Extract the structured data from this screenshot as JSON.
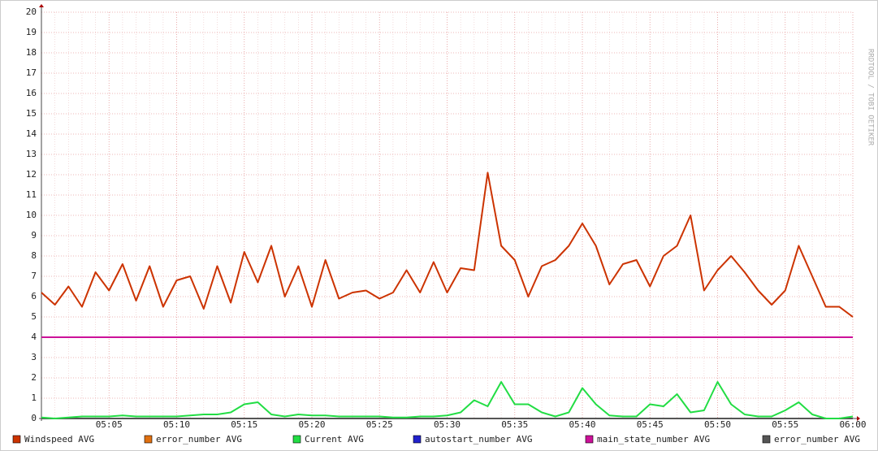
{
  "chart_data": {
    "type": "line",
    "watermark": "RRDTOOL / TOBI OETIKER",
    "x": [
      "05:00",
      "05:01",
      "05:02",
      "05:03",
      "05:04",
      "05:05",
      "05:06",
      "05:07",
      "05:08",
      "05:09",
      "05:10",
      "05:11",
      "05:12",
      "05:13",
      "05:14",
      "05:15",
      "05:16",
      "05:17",
      "05:18",
      "05:19",
      "05:20",
      "05:21",
      "05:22",
      "05:23",
      "05:24",
      "05:25",
      "05:26",
      "05:27",
      "05:28",
      "05:29",
      "05:30",
      "05:31",
      "05:32",
      "05:33",
      "05:34",
      "05:35",
      "05:36",
      "05:37",
      "05:38",
      "05:39",
      "05:40",
      "05:41",
      "05:42",
      "05:43",
      "05:44",
      "05:45",
      "05:46",
      "05:47",
      "05:48",
      "05:49",
      "05:50",
      "05:51",
      "05:52",
      "05:53",
      "05:54",
      "05:55",
      "05:56",
      "05:57",
      "05:58",
      "05:59",
      "06:00"
    ],
    "series": [
      {
        "name": "Windspeed AVG",
        "color": "#cc3300",
        "values": [
          6.2,
          5.6,
          6.5,
          5.5,
          7.2,
          6.3,
          7.6,
          5.8,
          7.5,
          5.5,
          6.8,
          7.0,
          5.4,
          7.5,
          5.7,
          8.2,
          6.7,
          8.5,
          6.0,
          7.5,
          5.5,
          7.8,
          5.9,
          6.2,
          6.3,
          5.9,
          6.2,
          7.3,
          6.2,
          7.7,
          6.2,
          7.4,
          7.3,
          12.1,
          8.5,
          7.8,
          6.0,
          7.5,
          7.8,
          8.5,
          9.6,
          8.5,
          6.6,
          7.6,
          7.8,
          6.5,
          8.0,
          8.5,
          10.0,
          6.3,
          7.3,
          8.0,
          7.2,
          6.3,
          5.6,
          6.3,
          8.5,
          7.0,
          5.5,
          5.5,
          5.0
        ]
      },
      {
        "name": "error_number AVG",
        "color": "#e07010",
        "values": [
          0,
          0,
          0,
          0,
          0,
          0,
          0,
          0,
          0,
          0,
          0,
          0,
          0,
          0,
          0,
          0,
          0,
          0,
          0,
          0,
          0,
          0,
          0,
          0,
          0,
          0,
          0,
          0,
          0,
          0,
          0,
          0,
          0,
          0,
          0,
          0,
          0,
          0,
          0,
          0,
          0,
          0,
          0,
          0,
          0,
          0,
          0,
          0,
          0,
          0,
          0,
          0,
          0,
          0,
          0,
          0,
          0,
          0,
          0,
          0,
          0
        ]
      },
      {
        "name": "Current AVG",
        "color": "#22dd44",
        "values": [
          0.05,
          0.0,
          0.05,
          0.1,
          0.1,
          0.1,
          0.15,
          0.1,
          0.1,
          0.1,
          0.1,
          0.15,
          0.2,
          0.2,
          0.3,
          0.7,
          0.8,
          0.2,
          0.1,
          0.2,
          0.15,
          0.15,
          0.1,
          0.1,
          0.1,
          0.1,
          0.05,
          0.05,
          0.1,
          0.1,
          0.15,
          0.3,
          0.9,
          0.6,
          1.8,
          0.7,
          0.7,
          0.3,
          0.1,
          0.3,
          1.5,
          0.7,
          0.15,
          0.1,
          0.1,
          0.7,
          0.6,
          1.2,
          0.3,
          0.4,
          1.8,
          0.7,
          0.2,
          0.1,
          0.1,
          0.4,
          0.8,
          0.2,
          0.0,
          0.0,
          0.1
        ]
      },
      {
        "name": "autostart_number AVG",
        "color": "#2222cc",
        "values": [
          0,
          0,
          0,
          0,
          0,
          0,
          0,
          0,
          0,
          0,
          0,
          0,
          0,
          0,
          0,
          0,
          0,
          0,
          0,
          0,
          0,
          0,
          0,
          0,
          0,
          0,
          0,
          0,
          0,
          0,
          0,
          0,
          0,
          0,
          0,
          0,
          0,
          0,
          0,
          0,
          0,
          0,
          0,
          0,
          0,
          0,
          0,
          0,
          0,
          0,
          0,
          0,
          0,
          0,
          0,
          0,
          0,
          0,
          0,
          0,
          0
        ]
      },
      {
        "name": "main_state_number AVG",
        "color": "#cc1199",
        "values": [
          4,
          4,
          4,
          4,
          4,
          4,
          4,
          4,
          4,
          4,
          4,
          4,
          4,
          4,
          4,
          4,
          4,
          4,
          4,
          4,
          4,
          4,
          4,
          4,
          4,
          4,
          4,
          4,
          4,
          4,
          4,
          4,
          4,
          4,
          4,
          4,
          4,
          4,
          4,
          4,
          4,
          4,
          4,
          4,
          4,
          4,
          4,
          4,
          4,
          4,
          4,
          4,
          4,
          4,
          4,
          4,
          4,
          4,
          4,
          4,
          4
        ]
      },
      {
        "name": "error_number AVG",
        "color": "#555555",
        "values": [
          0,
          0,
          0,
          0,
          0,
          0,
          0,
          0,
          0,
          0,
          0,
          0,
          0,
          0,
          0,
          0,
          0,
          0,
          0,
          0,
          0,
          0,
          0,
          0,
          0,
          0,
          0,
          0,
          0,
          0,
          0,
          0,
          0,
          0,
          0,
          0,
          0,
          0,
          0,
          0,
          0,
          0,
          0,
          0,
          0,
          0,
          0,
          0,
          0,
          0,
          0,
          0,
          0,
          0,
          0,
          0,
          0,
          0,
          0,
          0,
          0
        ]
      }
    ],
    "draw_order": [
      1,
      3,
      5,
      2,
      4,
      0
    ],
    "xlim": [
      "05:00",
      "06:00"
    ],
    "xticks": [
      "05:05",
      "05:10",
      "05:15",
      "05:20",
      "05:25",
      "05:30",
      "05:35",
      "05:40",
      "05:45",
      "05:50",
      "05:55",
      "06:00"
    ],
    "ylim": [
      0,
      20
    ],
    "yticks": [
      0,
      1,
      2,
      3,
      4,
      5,
      6,
      7,
      8,
      9,
      10,
      11,
      12,
      13,
      14,
      15,
      16,
      17,
      18,
      19,
      20
    ],
    "grid": true
  }
}
